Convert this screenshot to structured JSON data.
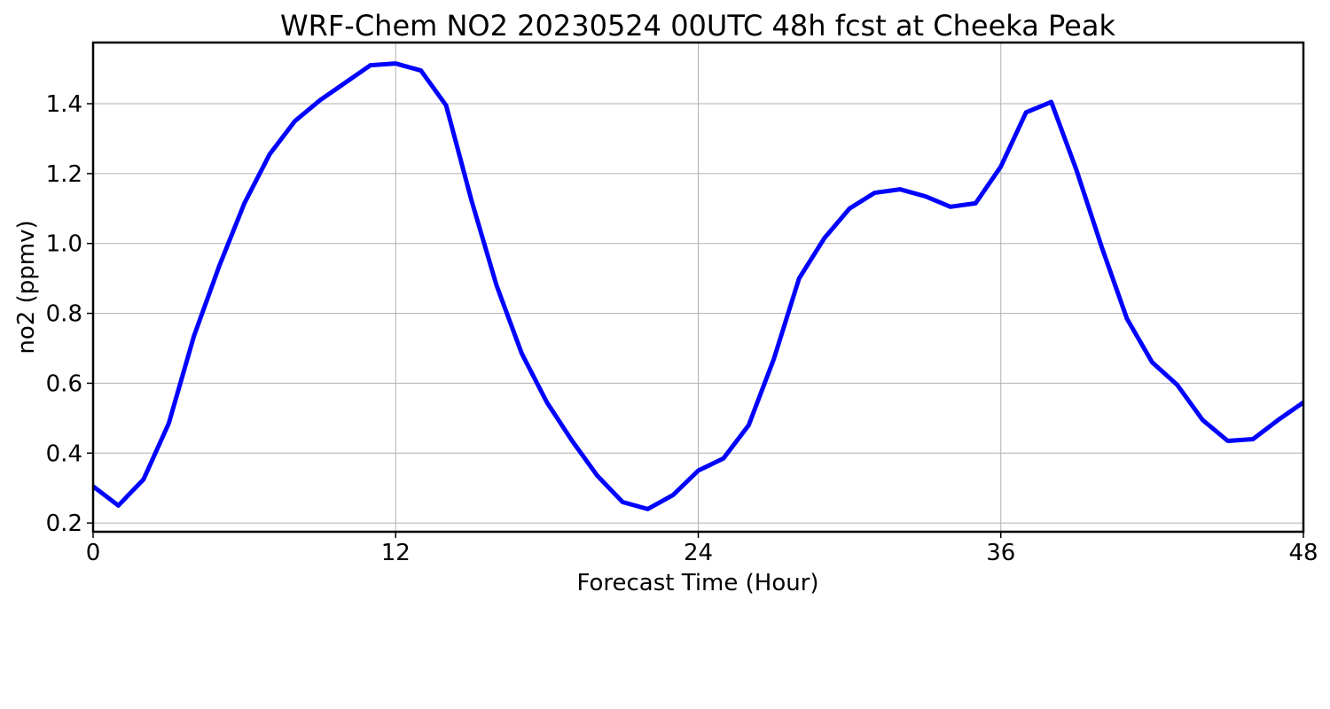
{
  "chart_data": {
    "type": "line",
    "title": "WRF-Chem NO2  20230524 00UTC 48h fcst at Cheeka Peak",
    "xlabel": "Forecast Time (Hour)",
    "ylabel": "no2  (ppmv)",
    "xlim": [
      0,
      48
    ],
    "ylim": [
      0.175,
      1.575
    ],
    "xticks": [
      0,
      12,
      24,
      36,
      48
    ],
    "yticks": [
      0.2,
      0.4,
      0.6,
      0.8,
      1.0,
      1.2,
      1.4
    ],
    "xtick_labels": [
      "0",
      "12",
      "24",
      "36",
      "48"
    ],
    "ytick_labels": [
      "0.2",
      "0.4",
      "0.6",
      "0.8",
      "1.0",
      "1.2",
      "1.4"
    ],
    "grid": true,
    "color": "#0000ff",
    "series": [
      {
        "x": [
          0,
          1,
          2,
          3,
          4,
          5,
          6,
          7,
          8,
          9,
          10,
          11,
          12,
          13,
          14,
          15,
          16,
          17,
          18,
          19,
          20,
          21,
          22,
          23,
          24,
          25,
          26,
          27,
          28,
          29,
          30,
          31,
          32,
          33,
          34,
          35,
          36,
          37,
          38,
          39,
          40,
          41,
          42,
          43,
          44,
          45,
          46,
          47,
          48
        ],
        "values": [
          0.305,
          0.25,
          0.325,
          0.485,
          0.735,
          0.935,
          1.115,
          1.255,
          1.35,
          1.41,
          1.46,
          1.51,
          1.515,
          1.495,
          1.395,
          1.125,
          0.88,
          0.685,
          0.545,
          0.435,
          0.335,
          0.26,
          0.24,
          0.28,
          0.35,
          0.385,
          0.48,
          0.67,
          0.9,
          1.015,
          1.1,
          1.145,
          1.155,
          1.135,
          1.105,
          1.115,
          1.22,
          1.375,
          1.405,
          1.21,
          0.99,
          0.785,
          0.66,
          0.595,
          0.495,
          0.435,
          0.44,
          0.495,
          0.545
        ]
      }
    ]
  }
}
